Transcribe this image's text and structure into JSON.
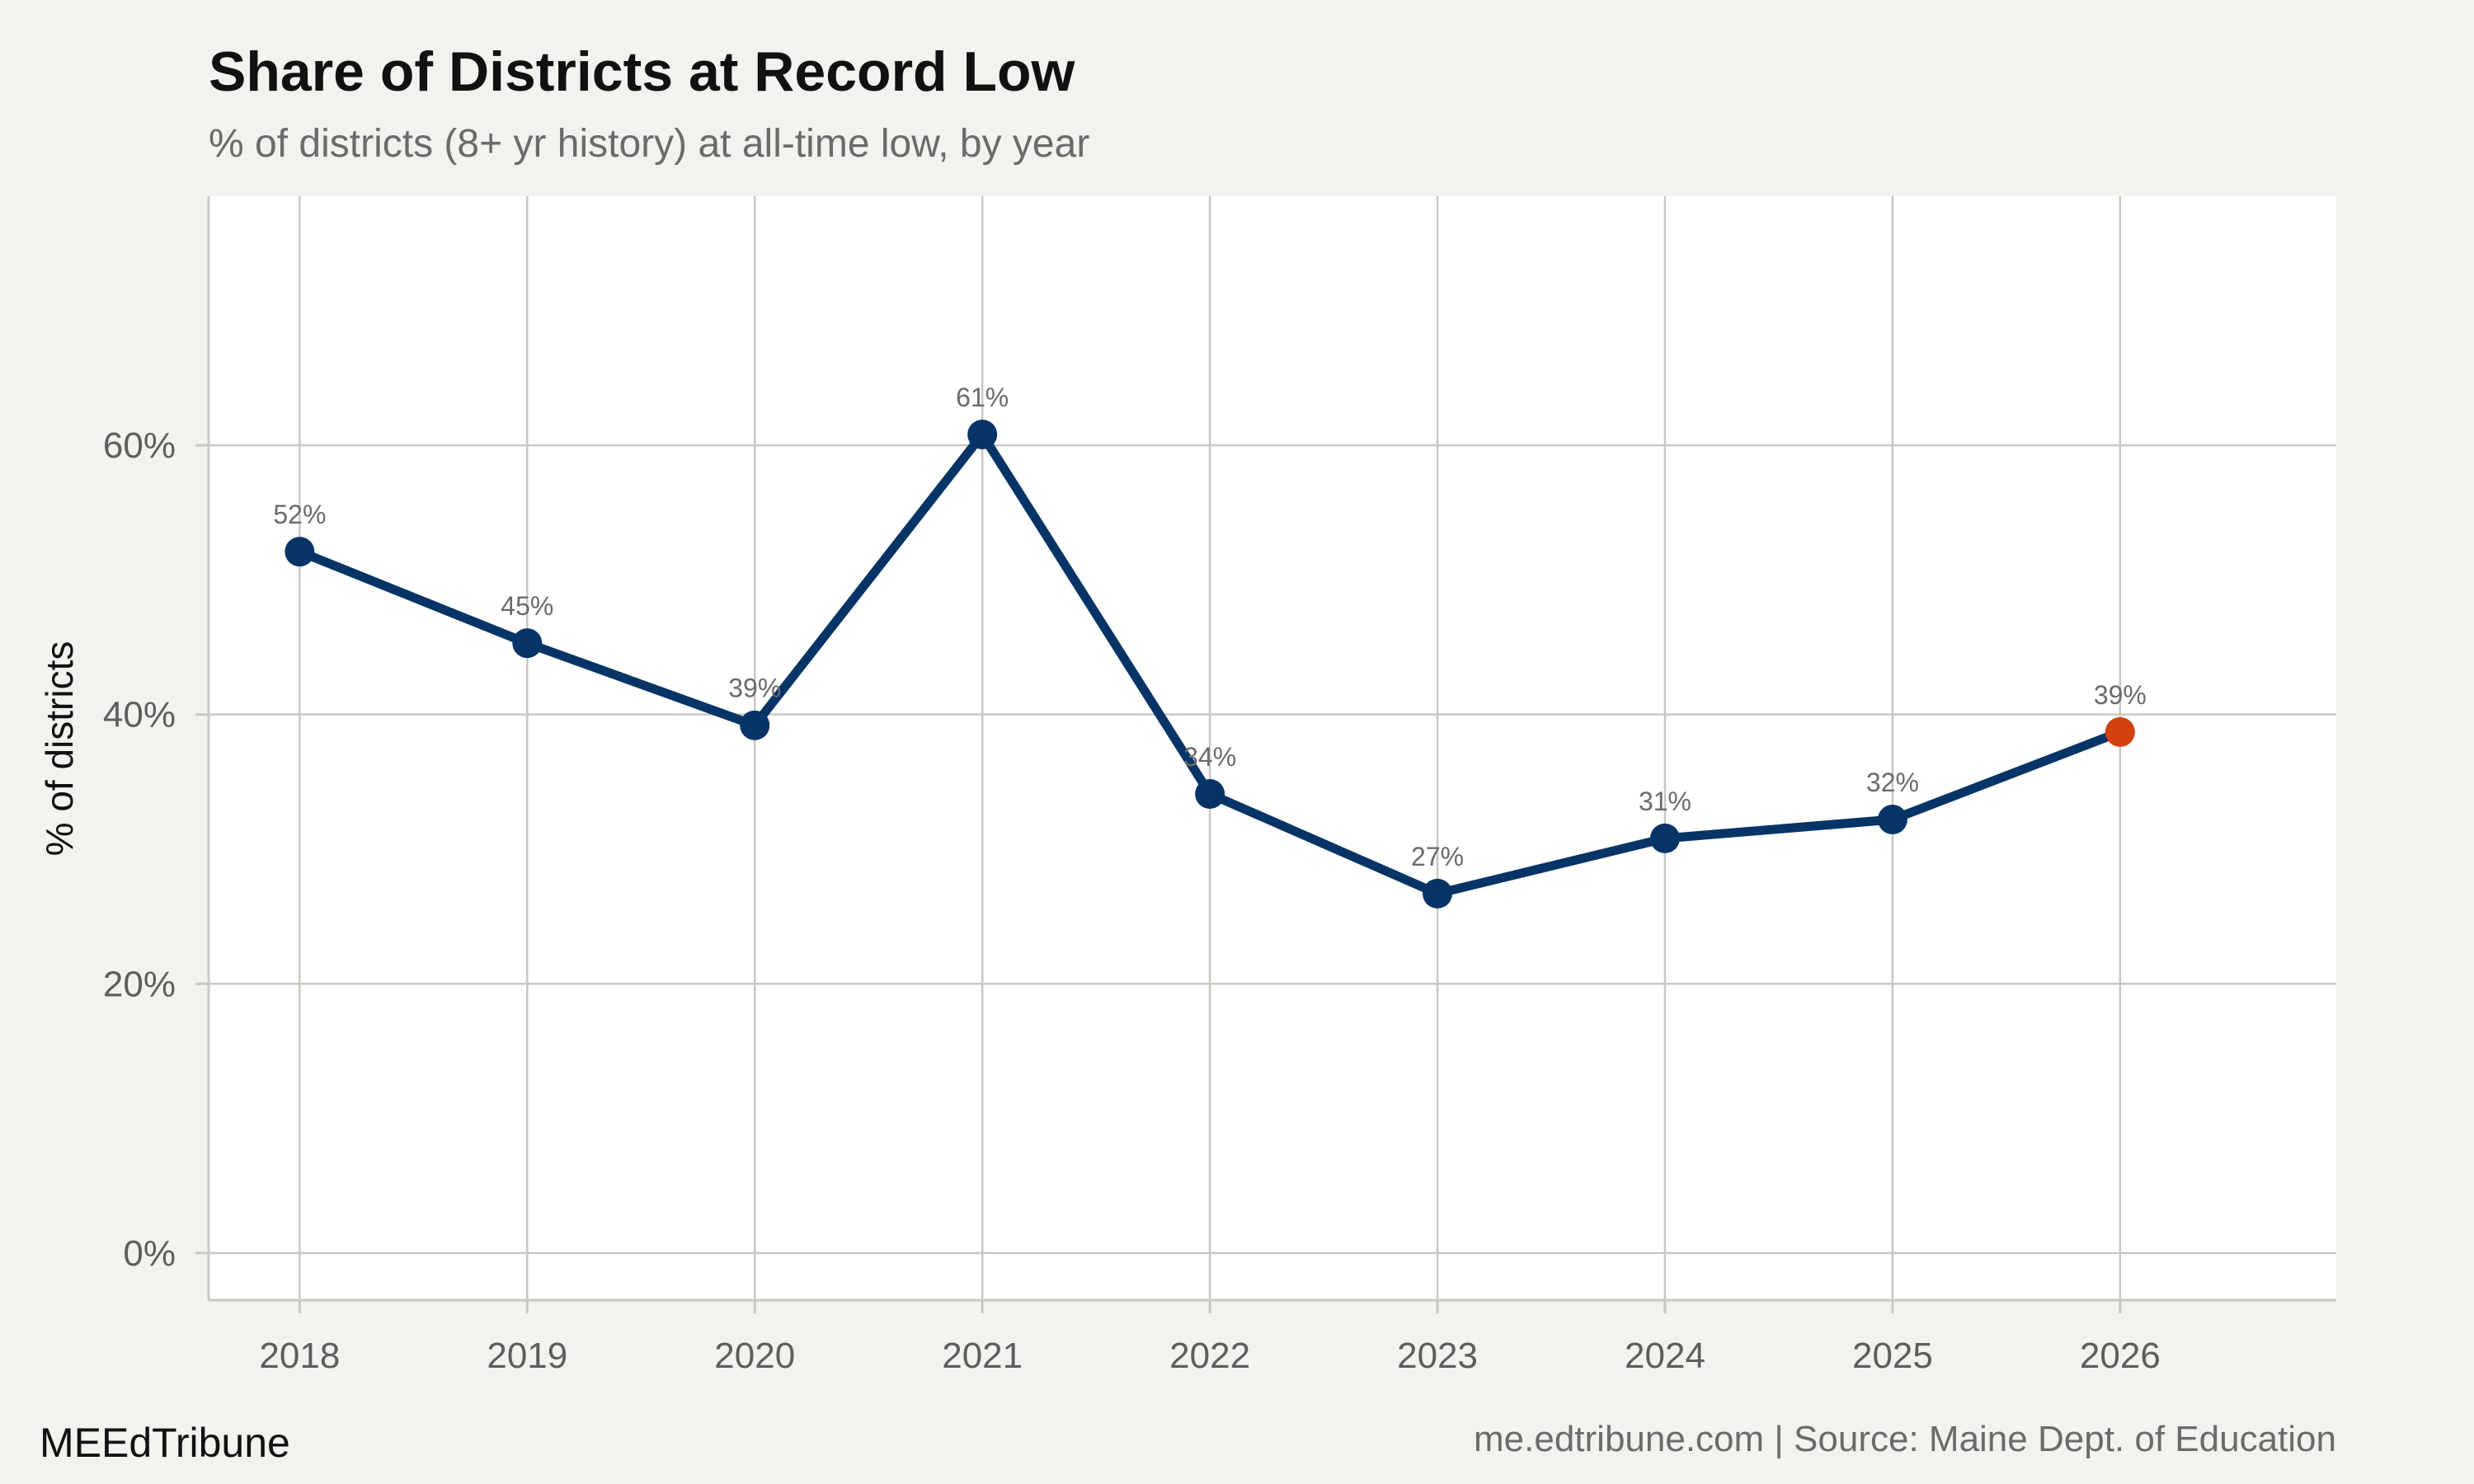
{
  "chart_data": {
    "type": "line",
    "title": "Share of Districts at Record Low",
    "subtitle": "% of districts (8+ yr history) at all-time low, by year",
    "ylabel": "% of districts",
    "x": [
      "2018",
      "2019",
      "2020",
      "2021",
      "2022",
      "2023",
      "2024",
      "2025",
      "2026"
    ],
    "series": [
      {
        "values": [
          52.1,
          45.3,
          39.2,
          60.8,
          34.1,
          26.7,
          30.8,
          32.2,
          38.7
        ],
        "labels": [
          "52%",
          "45%",
          "39%",
          "61%",
          "34%",
          "27%",
          "31%",
          "32%",
          "39%"
        ],
        "color": "#063466",
        "highlight_color": "#d2410f",
        "highlight_index": 8
      }
    ],
    "yticks": [
      0,
      20,
      40,
      60
    ],
    "ytick_labels": [
      "0%",
      "20%",
      "40%",
      "60%"
    ],
    "ylim": [
      -3.5,
      78.5
    ],
    "xlim": [
      2017.6,
      2026.95
    ],
    "grid": true,
    "legend": "none",
    "colors": {
      "background": "#f4f2ee",
      "panel": "#ffffff",
      "grid": "#c9c7c1"
    }
  },
  "footer": {
    "brand": "MEEdTribune",
    "source": "me.edtribune.com | Source: Maine Dept. of Education"
  }
}
